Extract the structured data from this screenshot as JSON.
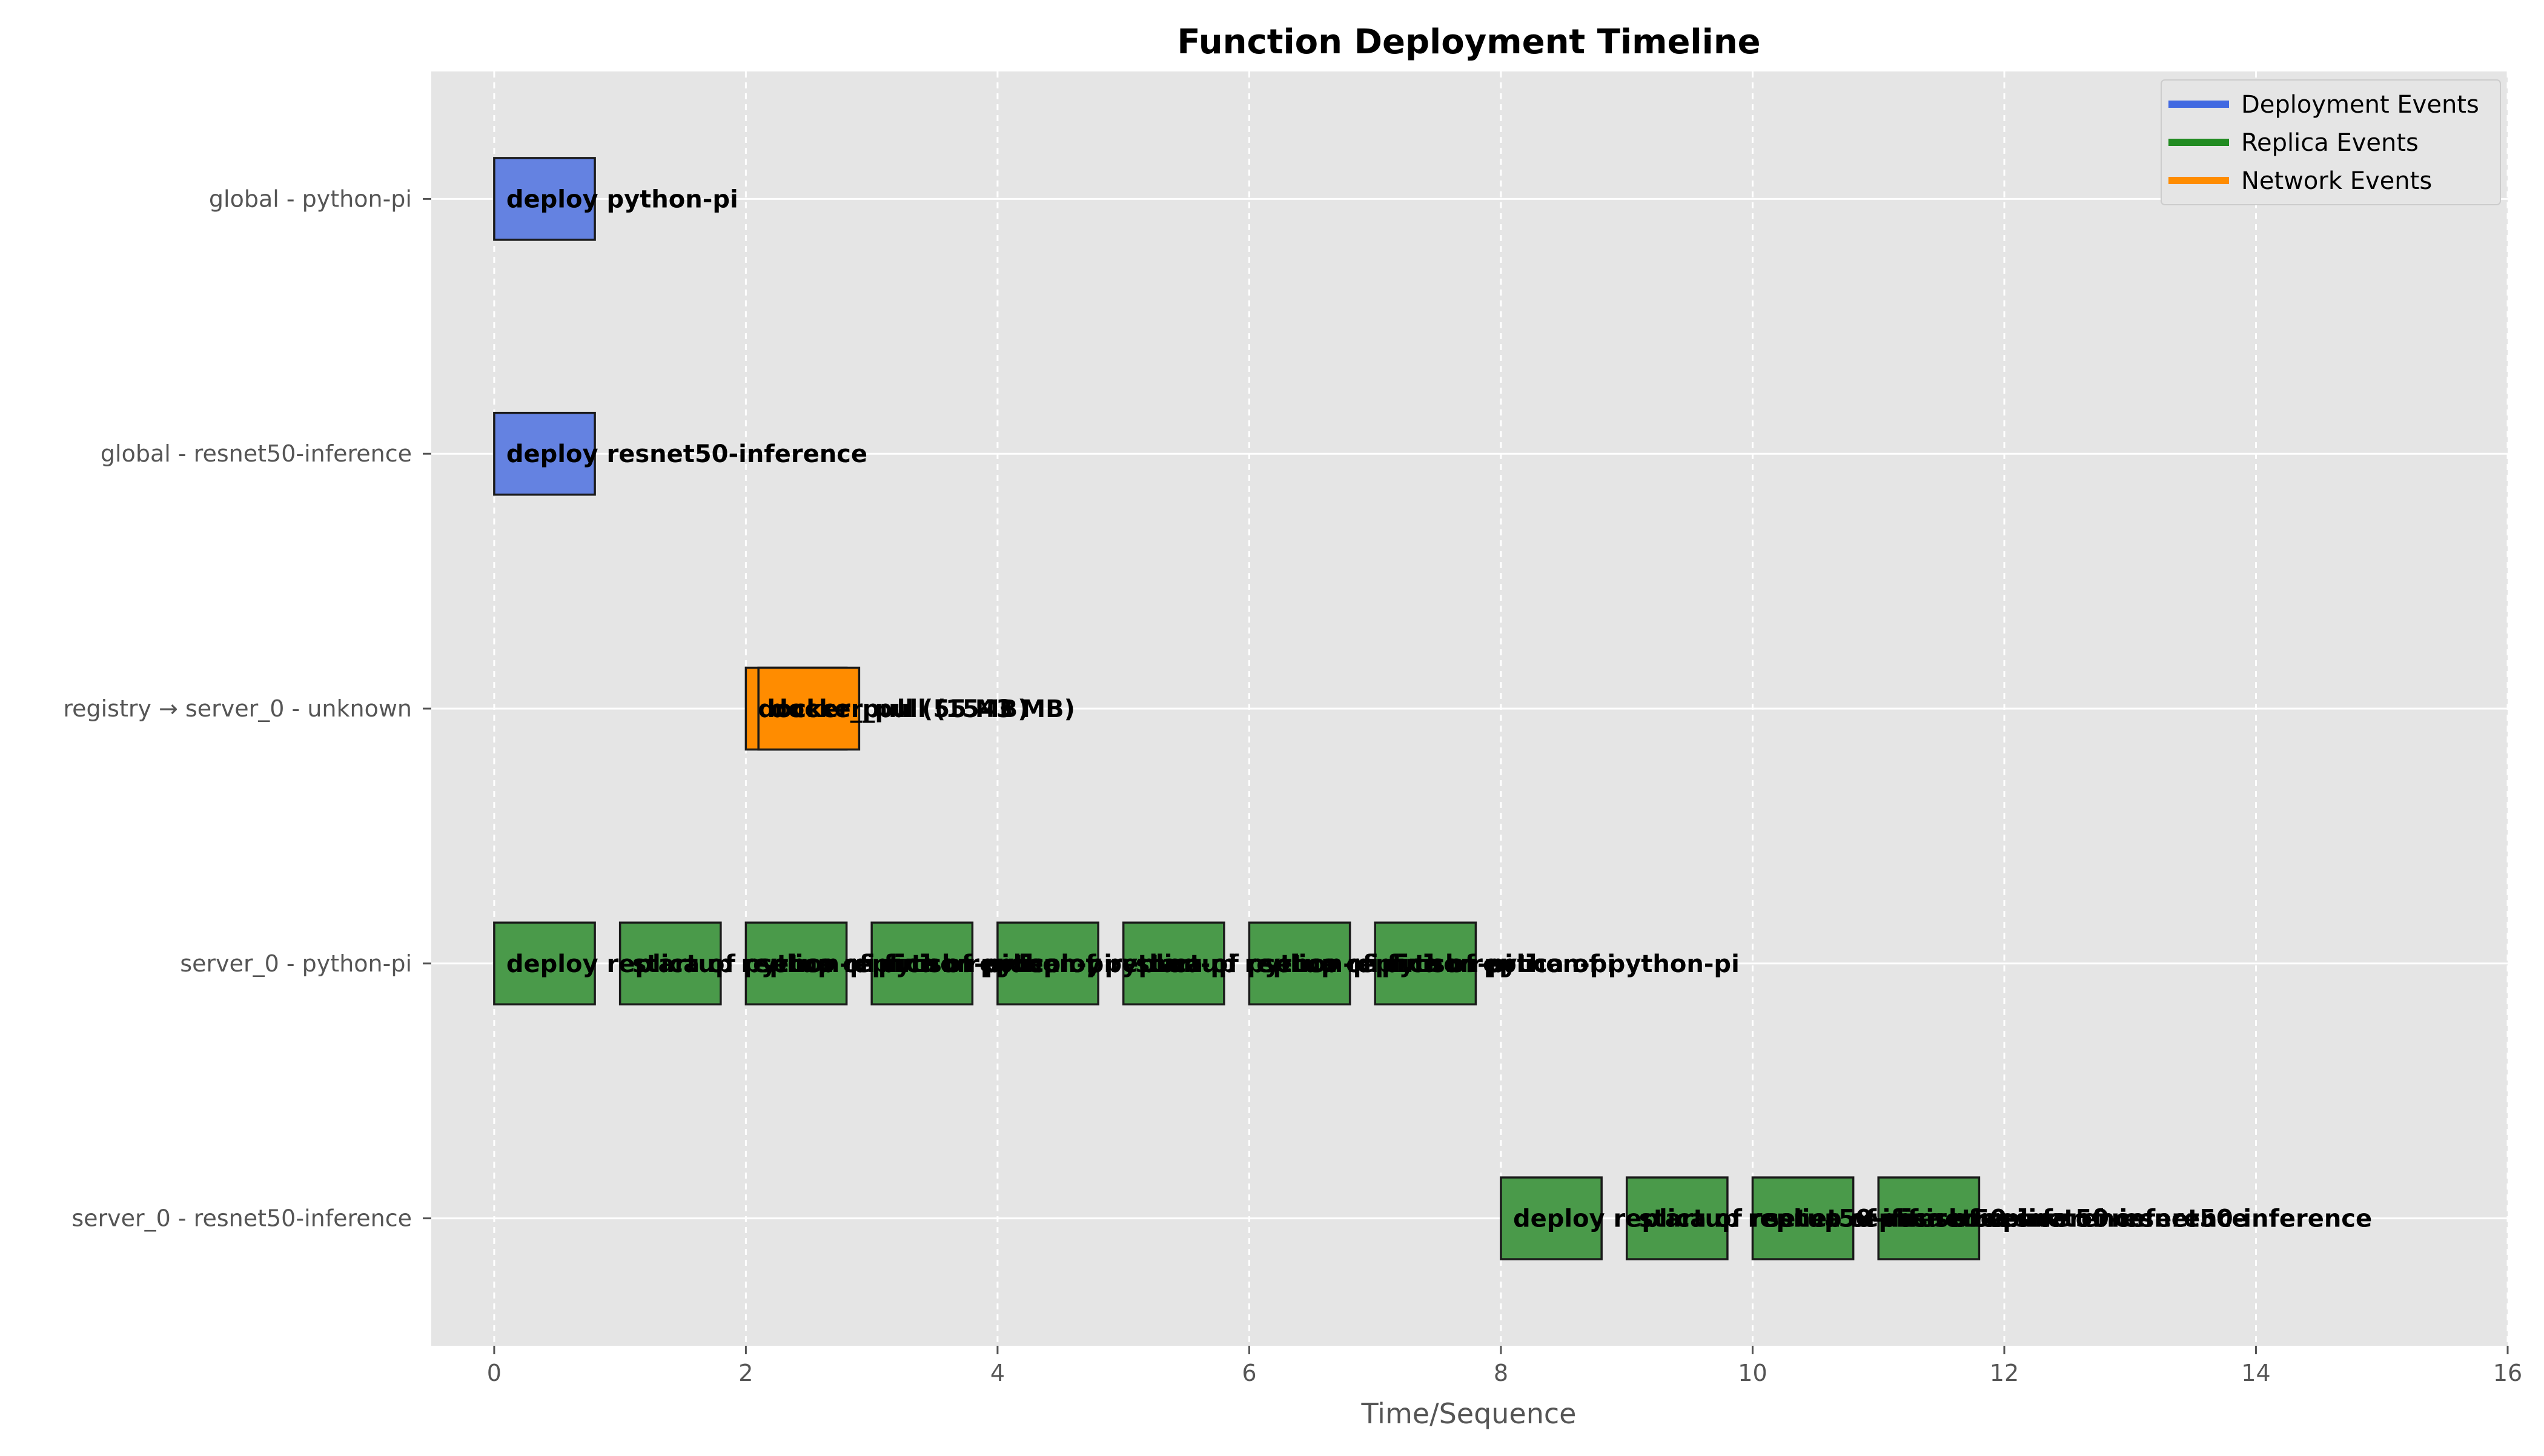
{
  "chart_data": {
    "type": "gantt",
    "title": "Function Deployment Timeline",
    "xlabel": "Time/Sequence",
    "xlim": [
      -0.5,
      16
    ],
    "xticks": [
      "0",
      "2",
      "4",
      "6",
      "8",
      "10",
      "12",
      "14",
      "16"
    ],
    "grid": true,
    "legend_position": "top-right",
    "legend": [
      {
        "label": "Deployment Events",
        "color": "#4169e1"
      },
      {
        "label": "Replica Events",
        "color": "#228b22"
      },
      {
        "label": "Network Events",
        "color": "#ff8c00"
      }
    ],
    "colors": {
      "deployment": "#6482e1",
      "replica": "#4a9a4a",
      "network": "#ff8c00",
      "plot_background": "#e5e5e5"
    },
    "rows": [
      "global - python-pi",
      "global - resnet50-inference",
      "registry → server_0 - unknown",
      "server_0 - python-pi",
      "server_0 - resnet50-inference"
    ],
    "events": [
      {
        "row": 0,
        "start": 0,
        "duration": 0.8,
        "category": "deployment",
        "label": "deploy python-pi"
      },
      {
        "row": 1,
        "start": 0,
        "duration": 0.8,
        "category": "deployment",
        "label": "deploy resnet50-inference"
      },
      {
        "row": 2,
        "start": 2,
        "duration": 0.8,
        "category": "network",
        "label": "docker_pull (55 MB)"
      },
      {
        "row": 2,
        "start": 2.1,
        "duration": 0.8,
        "category": "network",
        "label": "docker_pull (1543 MB)"
      },
      {
        "row": 3,
        "start": 0,
        "duration": 0.8,
        "category": "replica",
        "label": "deploy replica of python-pi"
      },
      {
        "row": 3,
        "start": 1,
        "duration": 0.8,
        "category": "replica",
        "label": "startup replica of python-pi"
      },
      {
        "row": 3,
        "start": 2,
        "duration": 0.8,
        "category": "replica",
        "label": "setup replica of python-pi"
      },
      {
        "row": 3,
        "start": 3,
        "duration": 0.8,
        "category": "replica",
        "label": "finish replica of python-pi"
      },
      {
        "row": 3,
        "start": 4,
        "duration": 0.8,
        "category": "replica",
        "label": "deploy replica of python-pi"
      },
      {
        "row": 3,
        "start": 5,
        "duration": 0.8,
        "category": "replica",
        "label": "startup replica of python-pi"
      },
      {
        "row": 3,
        "start": 6,
        "duration": 0.8,
        "category": "replica",
        "label": "setup replica of python-pi"
      },
      {
        "row": 3,
        "start": 7,
        "duration": 0.8,
        "category": "replica",
        "label": "finish replica of python-pi"
      },
      {
        "row": 4,
        "start": 8,
        "duration": 0.8,
        "category": "replica",
        "label": "deploy replica of resnet50-inference"
      },
      {
        "row": 4,
        "start": 9,
        "duration": 0.8,
        "category": "replica",
        "label": "startup replica of resnet50-inference"
      },
      {
        "row": 4,
        "start": 10,
        "duration": 0.8,
        "category": "replica",
        "label": "setup replica of resnet50-inference"
      },
      {
        "row": 4,
        "start": 11,
        "duration": 0.8,
        "category": "replica",
        "label": "finish replica of resnet50-inference"
      }
    ]
  }
}
